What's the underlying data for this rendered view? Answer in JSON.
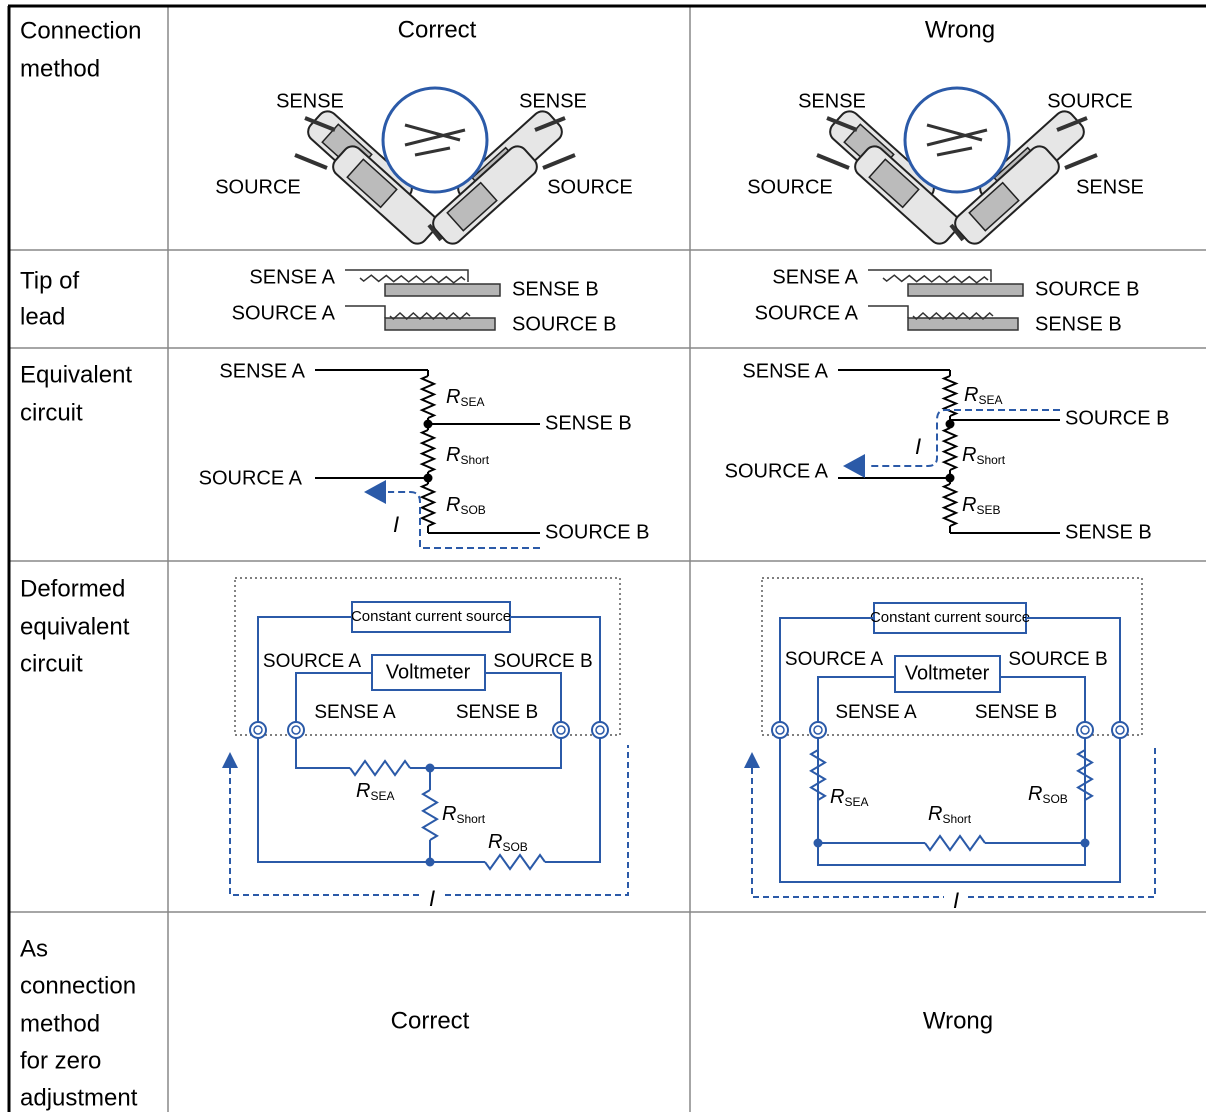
{
  "columns": {
    "correct": "Correct",
    "wrong": "Wrong"
  },
  "row_labels": [
    [
      "Connection",
      "method"
    ],
    [
      "Tip of",
      "lead"
    ],
    [
      "Equivalent",
      "circuit"
    ],
    [
      "Deformed",
      "equivalent",
      "circuit"
    ],
    [
      "As",
      "connection",
      "method",
      "for zero",
      "adjustment"
    ]
  ],
  "connection": {
    "correct": {
      "left_top": "SENSE",
      "right_top": "SENSE",
      "left_bottom": "SOURCE",
      "right_bottom": "SOURCE"
    },
    "wrong": {
      "left_top": "SENSE",
      "right_top": "SOURCE",
      "left_bottom": "SOURCE",
      "right_bottom": "SENSE"
    }
  },
  "tip": {
    "correct": {
      "a_top": "SENSE A",
      "a_bottom": "SOURCE A",
      "b_top": "SENSE B",
      "b_bottom": "SOURCE B"
    },
    "wrong": {
      "a_top": "SENSE A",
      "a_bottom": "SOURCE A",
      "b_top": "SOURCE B",
      "b_bottom": "SENSE B"
    }
  },
  "equivalent": {
    "correct": {
      "left_top": "SENSE A",
      "left_mid": "SOURCE A",
      "right_top": "SENSE B",
      "right_bottom": "SOURCE B",
      "r1": {
        "symbol": "R",
        "sub": "SEA"
      },
      "r2": {
        "symbol": "R",
        "sub": "Short"
      },
      "r3": {
        "symbol": "R",
        "sub": "SOB"
      },
      "current": "I"
    },
    "wrong": {
      "left_top": "SENSE A",
      "left_mid": "SOURCE A",
      "right_top": "SOURCE B",
      "right_bottom": "SENSE B",
      "r1": {
        "symbol": "R",
        "sub": "SEA"
      },
      "r2": {
        "symbol": "R",
        "sub": "Short"
      },
      "r3": {
        "symbol": "R",
        "sub": "SEB"
      },
      "current": "I"
    }
  },
  "deformed": {
    "correct": {
      "source": "Constant current source",
      "meter": "Voltmeter",
      "source_a": "SOURCE A",
      "source_b": "SOURCE B",
      "sense_a": "SENSE A",
      "sense_b": "SENSE B",
      "r_sea": {
        "symbol": "R",
        "sub": "SEA"
      },
      "r_short": {
        "symbol": "R",
        "sub": "Short"
      },
      "r_sob": {
        "symbol": "R",
        "sub": "SOB"
      },
      "current": "I"
    },
    "wrong": {
      "source": "Constant current source",
      "meter": "Voltmeter",
      "source_a": "SOURCE A",
      "source_b": "SOURCE B",
      "sense_a": "SENSE A",
      "sense_b": "SENSE B",
      "r_sea": {
        "symbol": "R",
        "sub": "SEA"
      },
      "r_short": {
        "symbol": "R",
        "sub": "Short"
      },
      "r_sob": {
        "symbol": "R",
        "sub": "SOB"
      },
      "current": "I"
    }
  },
  "result": {
    "correct": "Correct",
    "wrong": "Wrong"
  }
}
